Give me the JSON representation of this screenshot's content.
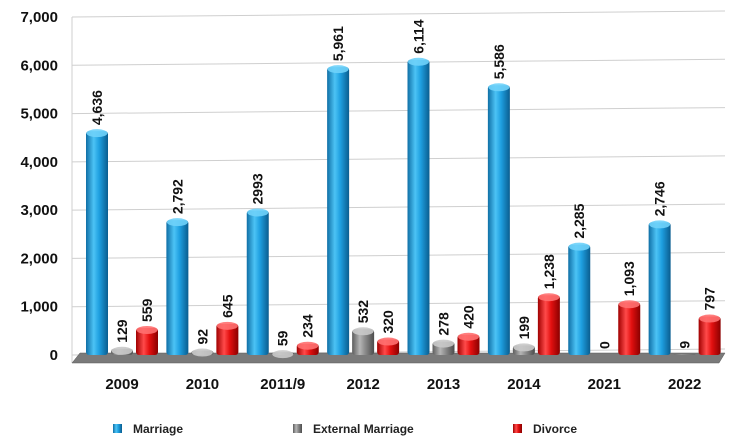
{
  "chart_data": {
    "type": "bar",
    "categories": [
      "2009",
      "2010",
      "2011/9",
      "2012",
      "2013",
      "2014",
      "2021",
      "2022"
    ],
    "series": [
      {
        "name": "Marriage",
        "color": "#1e9fe0",
        "values": [
          4636,
          2792,
          2993,
          5961,
          6114,
          5586,
          2285,
          2746
        ],
        "labels": [
          "4,636",
          "2,792",
          "2993",
          "5,961",
          "6,114",
          "5,586",
          "2,285",
          "2,746"
        ]
      },
      {
        "name": "External Marriage",
        "color": "#8a8a8a",
        "values": [
          129,
          92,
          59,
          532,
          278,
          199,
          0,
          9
        ],
        "labels": [
          "129",
          "92",
          "59",
          "532",
          "278",
          "199",
          "0",
          "9"
        ]
      },
      {
        "name": "Divorce",
        "color": "#e31010",
        "values": [
          559,
          645,
          234,
          320,
          420,
          1238,
          1093,
          797
        ],
        "labels": [
          "559",
          "645",
          "234",
          "320",
          "420",
          "1,238",
          "1,093",
          "797"
        ]
      }
    ],
    "yticks": [
      0,
      1000,
      2000,
      3000,
      4000,
      5000,
      6000,
      7000
    ],
    "ytick_labels": [
      "0",
      "1,000",
      "2,000",
      "3,000",
      "4,000",
      "5,000",
      "6,000",
      "7,000"
    ],
    "ylim": [
      0,
      7000
    ],
    "grid": true,
    "legend_position": "bottom"
  }
}
